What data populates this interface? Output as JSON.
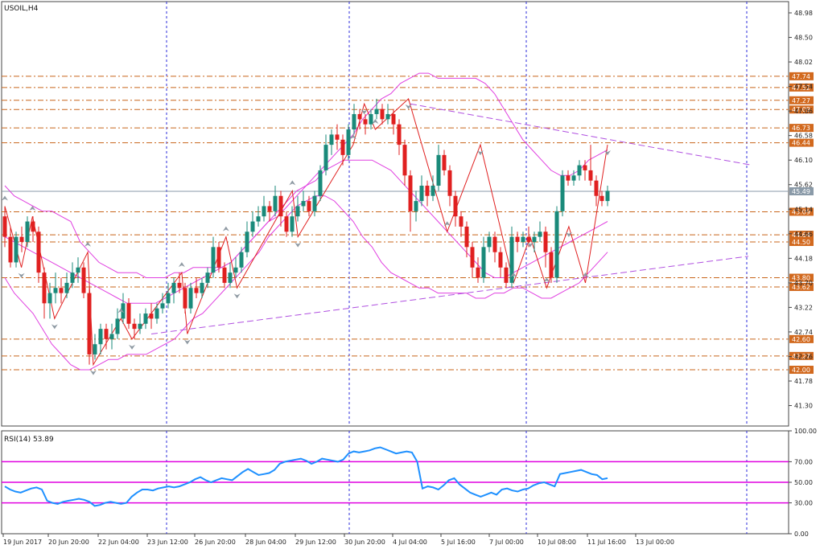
{
  "chart_data": [
    {
      "type": "candlestick",
      "title": "USOIL,H4",
      "ylim": [
        40.9,
        49.2
      ],
      "y_ticks": [
        "48.98",
        "48.50",
        "48.02",
        "47.54",
        "47.06",
        "46.58",
        "46.10",
        "45.62",
        "45.14",
        "44.66",
        "44.18",
        "43.70",
        "43.22",
        "42.74",
        "42.26",
        "41.78",
        "41.30"
      ],
      "x_ticks": [
        "19 Jun 2017",
        "20 Jun 20:00",
        "22 Jun 04:00",
        "23 Jun 12:00",
        "26 Jun 20:00",
        "28 Jun 04:00",
        "29 Jun 12:00",
        "30 Jun 20:00",
        "4 Jul 04:00",
        "5 Jul 16:00",
        "7 Jul 00:00",
        "10 Jul 08:00",
        "11 Jul 16:00",
        "13 Jul 00:00"
      ],
      "current_price": "45.49",
      "levels": [
        "47.74",
        "47.52",
        "47.27",
        "47.09",
        "46.73",
        "46.44",
        "45.09",
        "44.64",
        "44.50",
        "43.80",
        "43.62",
        "42.60",
        "42.27",
        "42.00"
      ],
      "candles": [
        [
          45.0,
          44.6,
          45.2,
          44.4
        ],
        [
          44.6,
          44.1,
          44.8,
          44.0
        ],
        [
          44.1,
          44.6,
          44.7,
          44.0
        ],
        [
          44.6,
          44.5,
          44.8,
          44.3
        ],
        [
          44.5,
          44.9,
          45.0,
          44.4
        ],
        [
          44.9,
          44.7,
          45.0,
          44.5
        ],
        [
          44.7,
          43.9,
          44.8,
          43.7
        ],
        [
          43.9,
          43.3,
          44.0,
          43.0
        ],
        [
          43.3,
          43.5,
          43.7,
          43.0
        ],
        [
          43.5,
          43.6,
          43.9,
          43.3
        ],
        [
          43.6,
          43.5,
          43.8,
          43.3
        ],
        [
          43.5,
          43.7,
          43.9,
          43.4
        ],
        [
          43.7,
          43.9,
          44.1,
          43.6
        ],
        [
          43.9,
          44.0,
          44.2,
          43.7
        ],
        [
          44.0,
          43.5,
          44.1,
          43.4
        ],
        [
          43.5,
          42.3,
          43.6,
          42.1
        ],
        [
          42.3,
          42.5,
          42.7,
          42.2
        ],
        [
          42.5,
          42.8,
          42.9,
          42.3
        ],
        [
          42.8,
          42.6,
          42.9,
          42.4
        ],
        [
          42.6,
          42.7,
          42.9,
          42.4
        ],
        [
          42.7,
          43.0,
          43.2,
          42.6
        ],
        [
          43.0,
          43.3,
          43.5,
          42.9
        ],
        [
          43.3,
          42.9,
          43.4,
          42.8
        ],
        [
          42.9,
          42.8,
          43.0,
          42.6
        ],
        [
          42.8,
          42.9,
          43.1,
          42.7
        ],
        [
          42.9,
          43.1,
          43.2,
          42.8
        ],
        [
          43.1,
          43.0,
          43.3,
          42.8
        ],
        [
          43.0,
          43.2,
          43.3,
          42.9
        ],
        [
          43.2,
          43.3,
          43.5,
          43.1
        ],
        [
          43.3,
          43.5,
          43.7,
          43.2
        ],
        [
          43.5,
          43.7,
          43.8,
          43.3
        ],
        [
          43.7,
          43.6,
          43.9,
          43.5
        ],
        [
          43.6,
          43.2,
          43.7,
          43.1
        ],
        [
          43.2,
          43.6,
          43.7,
          43.1
        ],
        [
          43.6,
          43.5,
          43.8,
          43.4
        ],
        [
          43.5,
          43.7,
          43.8,
          43.4
        ],
        [
          43.7,
          43.9,
          44.0,
          43.6
        ],
        [
          43.9,
          44.4,
          44.6,
          43.8
        ],
        [
          44.4,
          44.0,
          44.5,
          43.9
        ],
        [
          44.0,
          43.7,
          44.1,
          43.6
        ],
        [
          43.7,
          43.9,
          44.1,
          43.6
        ],
        [
          43.9,
          44.0,
          44.2,
          43.8
        ],
        [
          44.0,
          44.3,
          44.4,
          43.9
        ],
        [
          44.3,
          44.7,
          44.9,
          44.2
        ],
        [
          44.7,
          44.9,
          45.1,
          44.6
        ],
        [
          44.9,
          45.0,
          45.2,
          44.8
        ],
        [
          45.0,
          45.2,
          45.4,
          44.9
        ],
        [
          45.2,
          45.1,
          45.3,
          44.9
        ],
        [
          45.1,
          45.4,
          45.6,
          45.0
        ],
        [
          45.4,
          45.0,
          45.5,
          44.8
        ],
        [
          45.0,
          44.7,
          45.1,
          44.6
        ],
        [
          44.7,
          45.0,
          45.2,
          44.6
        ],
        [
          45.0,
          45.2,
          45.4,
          44.9
        ],
        [
          45.2,
          45.3,
          45.5,
          45.1
        ],
        [
          45.3,
          45.1,
          45.4,
          45.0
        ],
        [
          45.1,
          45.4,
          45.5,
          45.0
        ],
        [
          45.4,
          45.9,
          46.0,
          45.3
        ],
        [
          45.9,
          46.4,
          46.6,
          45.8
        ],
        [
          46.4,
          46.6,
          46.7,
          46.2
        ],
        [
          46.6,
          46.5,
          46.8,
          46.3
        ],
        [
          46.5,
          46.2,
          46.6,
          46.0
        ],
        [
          46.2,
          46.7,
          46.8,
          46.1
        ],
        [
          46.7,
          47.0,
          47.2,
          46.6
        ],
        [
          47.0,
          46.9,
          47.1,
          46.7
        ],
        [
          46.9,
          46.8,
          47.0,
          46.6
        ],
        [
          46.8,
          47.0,
          47.1,
          46.7
        ],
        [
          47.0,
          47.1,
          47.3,
          46.9
        ],
        [
          47.1,
          46.9,
          47.2,
          46.8
        ],
        [
          46.9,
          47.0,
          47.2,
          46.8
        ],
        [
          47.0,
          46.8,
          47.1,
          46.6
        ],
        [
          46.8,
          46.4,
          46.9,
          46.2
        ],
        [
          46.4,
          45.8,
          46.5,
          45.6
        ],
        [
          45.8,
          45.1,
          45.9,
          44.7
        ],
        [
          45.1,
          45.3,
          45.5,
          44.9
        ],
        [
          45.3,
          45.6,
          45.8,
          45.2
        ],
        [
          45.6,
          45.4,
          45.7,
          45.2
        ],
        [
          45.4,
          45.6,
          45.8,
          45.3
        ],
        [
          45.6,
          46.2,
          46.4,
          45.5
        ],
        [
          46.2,
          45.9,
          46.3,
          45.8
        ],
        [
          45.9,
          45.4,
          46.0,
          45.2
        ],
        [
          45.4,
          45.0,
          45.5,
          44.8
        ],
        [
          45.0,
          44.8,
          45.1,
          44.6
        ],
        [
          44.8,
          44.4,
          44.9,
          44.2
        ],
        [
          44.4,
          44.0,
          44.5,
          43.8
        ],
        [
          44.0,
          43.8,
          44.2,
          43.7
        ],
        [
          43.8,
          44.4,
          44.6,
          43.7
        ],
        [
          44.4,
          44.6,
          44.7,
          44.3
        ],
        [
          44.6,
          44.3,
          44.7,
          44.1
        ],
        [
          44.3,
          44.0,
          44.4,
          43.8
        ],
        [
          44.0,
          43.7,
          44.1,
          43.6
        ],
        [
          43.7,
          44.6,
          44.8,
          43.6
        ],
        [
          44.6,
          44.5,
          44.7,
          44.3
        ],
        [
          44.5,
          44.6,
          44.7,
          44.4
        ],
        [
          44.6,
          44.5,
          44.8,
          44.4
        ],
        [
          44.5,
          44.6,
          44.7,
          44.3
        ],
        [
          44.6,
          44.7,
          44.9,
          44.5
        ],
        [
          44.7,
          44.3,
          44.8,
          44.0
        ],
        [
          44.3,
          43.8,
          44.4,
          43.7
        ],
        [
          43.8,
          45.1,
          45.2,
          43.7
        ],
        [
          45.1,
          45.8,
          45.9,
          45.0
        ],
        [
          45.8,
          45.7,
          45.9,
          45.6
        ],
        [
          45.7,
          45.8,
          45.9,
          45.6
        ],
        [
          45.8,
          46.0,
          46.1,
          45.7
        ],
        [
          46.0,
          45.9,
          46.1,
          45.7
        ],
        [
          45.9,
          45.7,
          46.4,
          45.6
        ],
        [
          45.7,
          45.4,
          45.8,
          45.2
        ],
        [
          45.4,
          45.3,
          45.5,
          45.2
        ],
        [
          45.3,
          45.5,
          45.6,
          45.2
        ]
      ],
      "bollinger_upper": [
        45.6,
        45.4,
        45.3,
        45.2,
        45.1,
        45.1,
        45.0,
        44.9,
        44.5,
        44.3,
        44.1,
        44.0,
        43.9,
        43.9,
        43.9,
        43.8,
        43.8,
        43.8,
        43.9,
        43.9,
        44.0,
        44.0,
        44.0,
        44.0,
        44.1,
        44.3,
        44.5,
        44.7,
        44.9,
        45.1,
        45.3,
        45.5,
        45.6,
        45.8,
        46.0,
        46.2,
        46.4,
        46.6,
        46.9,
        47.1,
        47.3,
        47.4,
        47.6,
        47.7,
        47.8,
        47.8,
        47.7,
        47.7,
        47.7,
        47.7,
        47.7,
        47.6,
        47.4,
        47.1,
        46.8,
        46.5,
        46.3,
        46.1,
        45.9,
        45.8,
        45.8,
        45.9,
        46.1,
        46.2,
        46.3
      ],
      "bollinger_middle": [
        44.6,
        44.5,
        44.4,
        44.3,
        44.2,
        44.1,
        44.0,
        43.9,
        43.8,
        43.7,
        43.6,
        43.5,
        43.4,
        43.3,
        43.3,
        43.3,
        43.3,
        43.4,
        43.5,
        43.6,
        43.7,
        43.8,
        43.9,
        44.0,
        44.1,
        44.3,
        44.5,
        44.7,
        44.9,
        45.0,
        45.2,
        45.4,
        45.6,
        45.7,
        45.9,
        46.0,
        46.1,
        46.1,
        46.1,
        46.1,
        46.0,
        45.9,
        45.7,
        45.5,
        45.3,
        45.1,
        44.9,
        44.7,
        44.5,
        44.3,
        44.1,
        43.9,
        43.8,
        43.8,
        43.9,
        44.0,
        44.1,
        44.2,
        44.3,
        44.4,
        44.5,
        44.6,
        44.7,
        44.8,
        44.9
      ],
      "bollinger_lower": [
        43.8,
        43.5,
        43.3,
        43.1,
        42.8,
        42.5,
        42.3,
        42.1,
        42.0,
        42.0,
        42.1,
        42.2,
        42.2,
        42.3,
        42.3,
        42.3,
        42.4,
        42.5,
        42.6,
        42.8,
        43.0,
        43.1,
        43.3,
        43.5,
        43.7,
        43.9,
        44.1,
        44.3,
        44.6,
        44.8,
        45.0,
        45.2,
        45.3,
        45.4,
        45.4,
        45.3,
        45.1,
        44.9,
        44.6,
        44.4,
        44.1,
        43.9,
        43.8,
        43.7,
        43.6,
        43.6,
        43.5,
        43.5,
        43.5,
        43.5,
        43.4,
        43.4,
        43.5,
        43.5,
        43.6,
        43.6,
        43.5,
        43.4,
        43.4,
        43.5,
        43.6,
        43.7,
        43.9,
        44.1,
        44.3
      ]
    },
    {
      "type": "line",
      "title": "RSI(14) 53.89",
      "ylim": [
        0,
        100
      ],
      "y_ticks": [
        "100.00",
        "70.00",
        "50.00",
        "30.00",
        "0.00"
      ],
      "levels": [
        70,
        50,
        30
      ],
      "values": [
        46,
        43,
        41,
        40,
        42,
        44,
        45,
        43,
        32,
        30,
        29,
        31,
        32,
        33,
        34,
        33,
        31,
        27,
        28,
        30,
        31,
        30,
        29,
        30,
        36,
        40,
        43,
        43,
        42,
        44,
        45,
        46,
        45,
        46,
        48,
        50,
        53,
        55,
        52,
        50,
        52,
        54,
        53,
        52,
        56,
        60,
        63,
        60,
        57,
        58,
        59,
        62,
        68,
        70,
        71,
        72,
        73,
        71,
        68,
        70,
        73,
        72,
        71,
        70,
        72,
        78,
        80,
        79,
        80,
        81,
        83,
        84,
        82,
        80,
        78,
        79,
        80,
        79,
        70,
        44,
        46,
        45,
        43,
        47,
        52,
        54,
        48,
        44,
        40,
        38,
        36,
        38,
        40,
        38,
        43,
        44,
        42,
        41,
        43,
        44,
        47,
        49,
        50,
        48,
        46,
        58,
        59,
        60,
        61,
        62,
        60,
        58,
        57,
        53,
        54
      ]
    }
  ]
}
